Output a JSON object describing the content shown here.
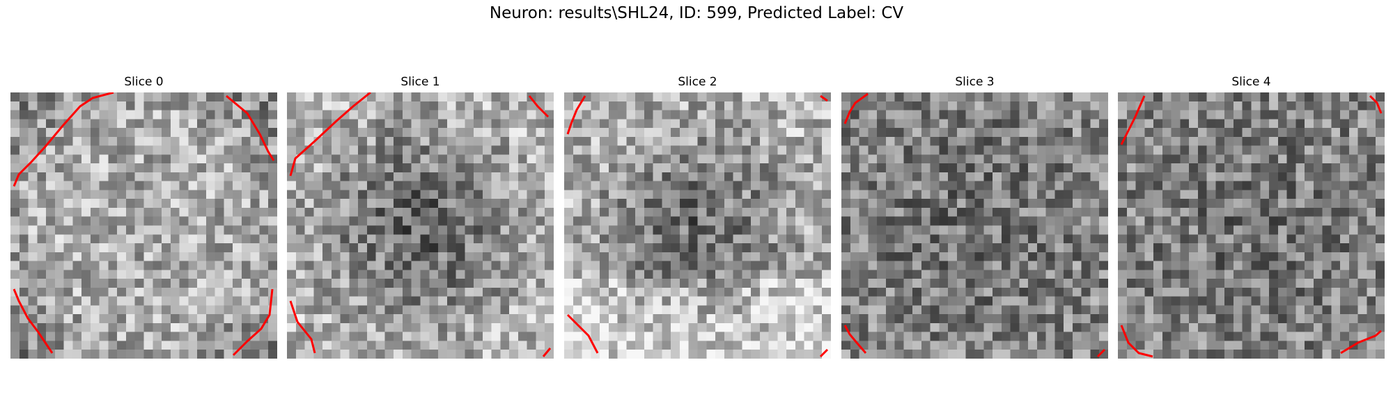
{
  "figure": {
    "title": "Neuron: results\\SHL24, ID: 599, Predicted Label: CV"
  },
  "colors": {
    "contour": "#ff0000",
    "background": "#ffffff"
  },
  "slices": [
    {
      "title": "Slice 0",
      "pattern": "bright-center"
    },
    {
      "title": "Slice 1",
      "pattern": "dark-center"
    },
    {
      "title": "Slice 2",
      "pattern": "dark-center-bright-bottom"
    },
    {
      "title": "Slice 3",
      "pattern": "mottled"
    },
    {
      "title": "Slice 4",
      "pattern": "mottled"
    }
  ]
}
